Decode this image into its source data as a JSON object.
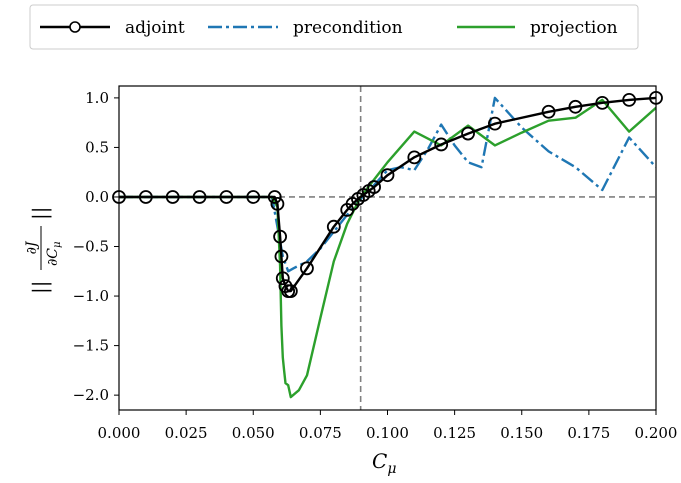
{
  "chart_data": {
    "type": "line",
    "xlabel": "C_μ",
    "xlabel_main": "C",
    "xlabel_sub": "μ",
    "ylabel": "||∂J/∂C_μ||",
    "ylabel_parts": {
      "bars": "||",
      "num": "∂J",
      "den_main": "∂C",
      "den_sub": "μ"
    },
    "xlim": [
      0.0,
      0.2
    ],
    "ylim": [
      -2.15,
      1.12
    ],
    "xticks": [
      0.0,
      0.025,
      0.05,
      0.075,
      0.1,
      0.125,
      0.15,
      0.175,
      0.2
    ],
    "xtick_labels": [
      "0.000",
      "0.025",
      "0.050",
      "0.075",
      "0.100",
      "0.125",
      "0.150",
      "0.175",
      "0.200"
    ],
    "yticks": [
      1.0,
      0.5,
      0.0,
      -0.5,
      -1.0,
      -1.5,
      -2.0
    ],
    "ytick_labels": [
      "1.0",
      "0.5",
      "0.0",
      "−0.5",
      "−1.0",
      "−1.5",
      "−2.0"
    ],
    "grid": false,
    "legend_position": "top-outside",
    "reference_lines": {
      "x": 0.09,
      "y": 0.0,
      "style": "dashed",
      "color": "#808080"
    },
    "series": [
      {
        "name": "adjoint",
        "color": "#000000",
        "line_style": "solid",
        "marker": "circle-open",
        "x": [
          0.0,
          0.01,
          0.02,
          0.03,
          0.04,
          0.05,
          0.058,
          0.059,
          0.06,
          0.0605,
          0.061,
          0.062,
          0.063,
          0.064,
          0.07,
          0.08,
          0.085,
          0.087,
          0.089,
          0.091,
          0.093,
          0.095,
          0.1,
          0.11,
          0.12,
          0.13,
          0.14,
          0.16,
          0.17,
          0.18,
          0.19,
          0.2
        ],
        "y": [
          0.0,
          0.0,
          0.0,
          0.0,
          0.0,
          0.0,
          0.0,
          -0.07,
          -0.4,
          -0.6,
          -0.82,
          -0.9,
          -0.95,
          -0.95,
          -0.72,
          -0.3,
          -0.13,
          -0.07,
          -0.02,
          0.02,
          0.06,
          0.1,
          0.22,
          0.4,
          0.53,
          0.64,
          0.74,
          0.86,
          0.91,
          0.95,
          0.98,
          1.0
        ]
      },
      {
        "name": "precondition",
        "color": "#1f77b4",
        "line_style": "dashdot",
        "marker": "none",
        "x": [
          0.0,
          0.05,
          0.057,
          0.059,
          0.061,
          0.063,
          0.065,
          0.07,
          0.075,
          0.08,
          0.085,
          0.09,
          0.095,
          0.1,
          0.105,
          0.11,
          0.115,
          0.12,
          0.125,
          0.13,
          0.135,
          0.14,
          0.15,
          0.16,
          0.17,
          0.18,
          0.19,
          0.2
        ],
        "y": [
          0.0,
          0.0,
          0.0,
          -0.3,
          -0.6,
          -0.75,
          -0.72,
          -0.65,
          -0.52,
          -0.35,
          -0.18,
          -0.02,
          0.12,
          0.27,
          0.3,
          0.27,
          0.48,
          0.73,
          0.52,
          0.35,
          0.3,
          1.0,
          0.7,
          0.46,
          0.3,
          0.07,
          0.6,
          0.3
        ]
      },
      {
        "name": "projection",
        "color": "#2ca02c",
        "line_style": "solid",
        "marker": "none",
        "x": [
          0.0,
          0.05,
          0.057,
          0.059,
          0.06,
          0.0605,
          0.061,
          0.0615,
          0.062,
          0.063,
          0.064,
          0.067,
          0.07,
          0.075,
          0.08,
          0.085,
          0.09,
          0.1,
          0.11,
          0.12,
          0.13,
          0.14,
          0.15,
          0.16,
          0.17,
          0.18,
          0.19,
          0.2
        ],
        "y": [
          0.0,
          0.0,
          0.0,
          -0.1,
          -0.7,
          -1.3,
          -1.62,
          -1.75,
          -1.88,
          -1.9,
          -2.02,
          -1.95,
          -1.8,
          -1.22,
          -0.65,
          -0.27,
          0.0,
          0.35,
          0.66,
          0.52,
          0.72,
          0.52,
          0.65,
          0.77,
          0.8,
          0.98,
          0.66,
          0.9
        ]
      }
    ]
  }
}
